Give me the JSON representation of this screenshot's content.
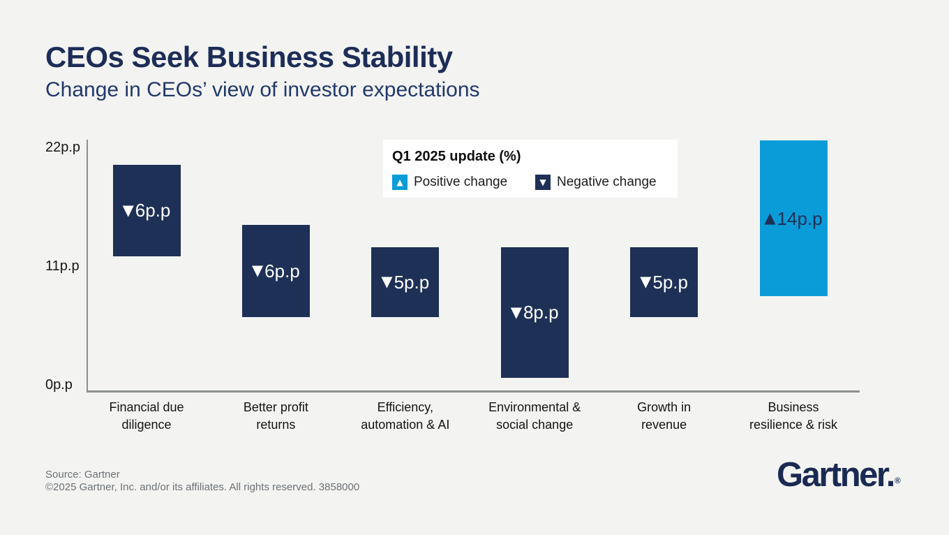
{
  "title": "CEOs Seek Business Stability",
  "subtitle": "Change in CEOs’ view of investor expectations",
  "colors": {
    "negative_bar": "#1e3056",
    "positive_bar": "#0a9cd8",
    "negative_bar_text": "#ffffff",
    "positive_bar_text": "#1e3056",
    "background": "#f3f4f2",
    "axis": "#8b908c"
  },
  "icons": {
    "triangle-down": "▼",
    "triangle-up": "▲",
    "registered-mark": "®"
  },
  "legend": {
    "title": "Q1 2025 update (%)",
    "items": [
      {
        "label": "Positive change",
        "direction": "up",
        "swatch_color": "#0a9cd8"
      },
      {
        "label": "Negative change",
        "direction": "down",
        "swatch_color": "#1e3056"
      }
    ]
  },
  "y_axis": {
    "ticks": [
      {
        "label": "22p.p",
        "value": 22
      },
      {
        "label": "11p.p",
        "value": 11
      },
      {
        "label": "0p.p",
        "value": 0
      }
    ]
  },
  "chart_data": {
    "type": "bar",
    "title": "Q1 2025 update (%)",
    "categories": [
      "Financial due diligence",
      "Better profit returns",
      "Efficiency, automation & AI",
      "Environmental & social change",
      "Growth in revenue",
      "Business resilience & risk"
    ],
    "values": [
      -6,
      -6,
      -5,
      -8,
      -5,
      14
    ],
    "unit": "p.p",
    "ylim": [
      0,
      22
    ],
    "ytick_labels": [
      "22p.p",
      "11p.p",
      "0p.p"
    ],
    "grid": false,
    "legend_position": "top-center",
    "bars": [
      {
        "value_label": "6p.p",
        "direction": "down",
        "span": [
          11.9,
          20.4
        ],
        "category_lines": [
          "Financial due",
          "diligence"
        ]
      },
      {
        "value_label": "6p.p",
        "direction": "down",
        "span": [
          6.3,
          14.8
        ],
        "category_lines": [
          "Better profit",
          "returns"
        ]
      },
      {
        "value_label": "5p.p",
        "direction": "down",
        "span": [
          6.3,
          12.75
        ],
        "category_lines": [
          "Efficiency,",
          "automation & AI"
        ]
      },
      {
        "value_label": "8p.p",
        "direction": "down",
        "span": [
          0.65,
          12.75
        ],
        "category_lines": [
          "Environmental &",
          "social change"
        ]
      },
      {
        "value_label": "5p.p",
        "direction": "down",
        "span": [
          6.3,
          12.75
        ],
        "category_lines": [
          "Growth in",
          "revenue"
        ]
      },
      {
        "value_label": "14p.p",
        "direction": "up",
        "span": [
          8.2,
          22.65
        ],
        "category_lines": [
          "Business",
          "resilience & risk"
        ]
      }
    ]
  },
  "footer": {
    "source_line1": "Source: Gartner",
    "source_line2": "©2025 Gartner, Inc. and/or its affiliates. All rights reserved. 3858000",
    "logo_text": "Gartner."
  }
}
